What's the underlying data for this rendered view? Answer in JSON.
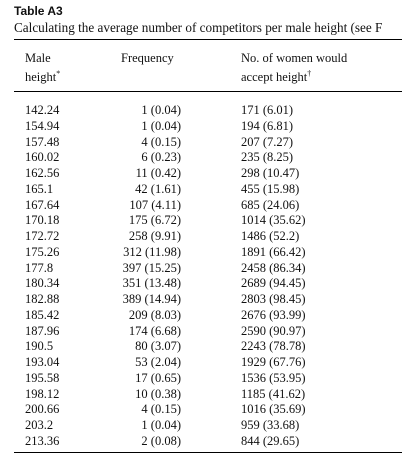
{
  "table": {
    "label": "Table A3",
    "caption": "Calculating the average number of competitors per male height (see F",
    "header": [
      {
        "lines": [
          "Male",
          "height"
        ],
        "note": "*"
      },
      {
        "lines": [
          "Frequency"
        ]
      },
      {
        "lines": [
          "No. of women would",
          "accept height"
        ],
        "note": "†"
      }
    ],
    "rows": [
      [
        "142.24",
        "1 (0.04)",
        "171 (6.01)"
      ],
      [
        "154.94",
        "1 (0.04)",
        "194 (6.81)"
      ],
      [
        "157.48",
        "4 (0.15)",
        "207 (7.27)"
      ],
      [
        "160.02",
        "6 (0.23)",
        "235 (8.25)"
      ],
      [
        "162.56",
        "11 (0.42)",
        "298 (10.47)"
      ],
      [
        "165.1",
        "42 (1.61)",
        "455 (15.98)"
      ],
      [
        "167.64",
        "107 (4.11)",
        "685 (24.06)"
      ],
      [
        "170.18",
        "175 (6.72)",
        "1014 (35.62)"
      ],
      [
        "172.72",
        "258 (9.91)",
        "1486 (52.2)"
      ],
      [
        "175.26",
        "312 (11.98)",
        "1891 (66.42)"
      ],
      [
        "177.8",
        "397 (15.25)",
        "2458 (86.34)"
      ],
      [
        "180.34",
        "351 (13.48)",
        "2689 (94.45)"
      ],
      [
        "182.88",
        "389 (14.94)",
        "2803 (98.45)"
      ],
      [
        "185.42",
        "209 (8.03)",
        "2676 (93.99)"
      ],
      [
        "187.96",
        "174 (6.68)",
        "2590 (90.97)"
      ],
      [
        "190.5",
        "80 (3.07)",
        "2243 (78.78)"
      ],
      [
        "193.04",
        "53 (2.04)",
        "1929 (67.76)"
      ],
      [
        "195.58",
        "17 (0.65)",
        "1536 (53.95)"
      ],
      [
        "198.12",
        "10 (0.38)",
        "1185 (41.62)"
      ],
      [
        "200.66",
        "4 (0.15)",
        "1016 (35.69)"
      ],
      [
        "203.2",
        "1 (0.04)",
        "959 (33.68)"
      ],
      [
        "213.36",
        "2 (0.08)",
        "844 (29.65)"
      ]
    ]
  }
}
